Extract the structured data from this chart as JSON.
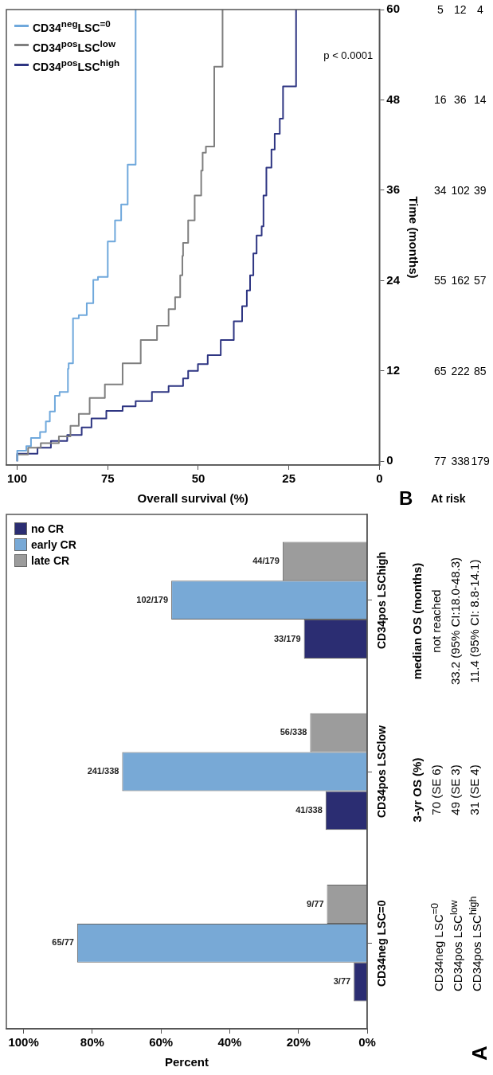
{
  "chart_data": [
    {
      "type": "bar",
      "orientation": "horizontal",
      "xlabel": "Percent",
      "categories": [
        "CD34pos LSChigh",
        "CD34pos LSClow",
        "CD34neg LSC=0"
      ],
      "series": [
        {
          "name": "no CR",
          "color": "#2b2d72",
          "values": [
            18.4,
            12.1,
            3.9
          ],
          "value_labels": [
            "33/179",
            "41/338",
            "3/77"
          ]
        },
        {
          "name": "early CR",
          "color": "#78a9d6",
          "values": [
            57.0,
            71.3,
            84.4
          ],
          "value_labels": [
            "102/179",
            "241/338",
            "65/77"
          ]
        },
        {
          "name": "late CR",
          "color": "#9c9c9c",
          "values": [
            24.6,
            16.6,
            11.7
          ],
          "value_labels": [
            "44/179",
            "56/338",
            "9/77"
          ]
        }
      ],
      "xlim": [
        105,
        0
      ],
      "xticks": [
        {
          "value": 0,
          "label": "0%"
        },
        {
          "value": 20,
          "label": "20%"
        },
        {
          "value": 40,
          "label": "40%"
        },
        {
          "value": 60,
          "label": "60%"
        },
        {
          "value": 80,
          "label": "80%"
        },
        {
          "value": 100,
          "label": "100%"
        }
      ],
      "legend": "top left",
      "annotations": [
        "A",
        "3-yr OS (%)",
        "median OS (months)",
        "CD34neg LSC$^{=0}$",
        "70 (SE 6)",
        "not reached",
        "CD34pos LSC$^{low}$",
        "49 (SE 3)",
        "33.2 (95% CI:18.0-48.3)",
        "CD34pos LSC$^{high}$",
        "31 (SE 4)",
        "11.4 (95% CI:  8.8-14.1)"
      ]
    },
    {
      "type": "step",
      "orientation": "horizontal",
      "ylabel": "Time (months)",
      "xlabel": "Overall survival (%)",
      "ylim": [
        -0.5,
        60
      ],
      "yticks": [
        0,
        12,
        24,
        36,
        48,
        60
      ],
      "xlim": [
        103,
        0
      ],
      "xticks": [
        100,
        75,
        50,
        25,
        0
      ],
      "legend": "top left",
      "series": [
        {
          "name": "CD34$^{neg}$LSC$^{=0}$",
          "color": "#6fa8dc",
          "x": [
            0,
            1.4,
            2,
            3.1,
            3.9,
            5.3,
            6.6,
            8.7,
            9.2,
            12.3,
            13,
            19,
            19.4,
            21,
            24.1,
            24.5,
            29.2,
            32,
            34.1,
            39.4,
            60
          ],
          "values": [
            100,
            97.5,
            96.2,
            93.7,
            92.1,
            91,
            89.6,
            88.3,
            86,
            85.8,
            84.6,
            83,
            80.8,
            79,
            77.7,
            75,
            73,
            71.3,
            69.5,
            67.3,
            67.3
          ]
        },
        {
          "name": "CD34$^{pos}$LSC$^{low}$",
          "color": "#7f7f7f",
          "x": [
            0,
            0.9,
            1.8,
            2.4,
            3.3,
            4.7,
            6.3,
            8.4,
            10.2,
            13,
            16.1,
            18,
            20.2,
            21.8,
            24.7,
            27.3,
            29,
            32,
            35.3,
            38.6,
            41,
            41.8,
            44.3,
            52.4,
            60
          ],
          "values": [
            100,
            97,
            93.5,
            88.5,
            85.3,
            83,
            80,
            75.8,
            70.9,
            65.9,
            61.4,
            58.2,
            56.4,
            55,
            54.4,
            54.2,
            52.8,
            51,
            49.2,
            48.8,
            47.9,
            45.6,
            45.6,
            43.3,
            43.3
          ]
        },
        {
          "name": "CD34$^{pos}$LSC$^{high}$",
          "color": "#2e3582",
          "x": [
            0,
            1,
            1.8,
            2.7,
            3.5,
            4.5,
            5.7,
            6.7,
            7.3,
            8,
            9.2,
            10,
            11,
            12,
            12.9,
            14.1,
            16.1,
            18.6,
            20.6,
            22.7,
            24.7,
            27.6,
            30,
            31.2,
            35.3,
            39,
            41.4,
            43.5,
            45.5,
            49.8,
            60
          ],
          "values": [
            100,
            94.4,
            90.7,
            86.2,
            82.2,
            79.5,
            75.4,
            70.9,
            67.3,
            62.8,
            58.2,
            54.2,
            52.8,
            50.1,
            47.4,
            43.8,
            40.2,
            37.9,
            36.6,
            35.7,
            34.8,
            33.9,
            32.5,
            32,
            31.2,
            29.8,
            28.9,
            27.5,
            26.6,
            23,
            23
          ]
        }
      ],
      "annotations": [
        "p < 0.0001",
        "B",
        "At risk",
        "77",
        "338",
        "179",
        "65",
        "222",
        "85",
        "55",
        "162",
        "57",
        "34",
        "102",
        "39",
        "16",
        "36",
        "14",
        "5",
        "12",
        "4"
      ]
    }
  ]
}
